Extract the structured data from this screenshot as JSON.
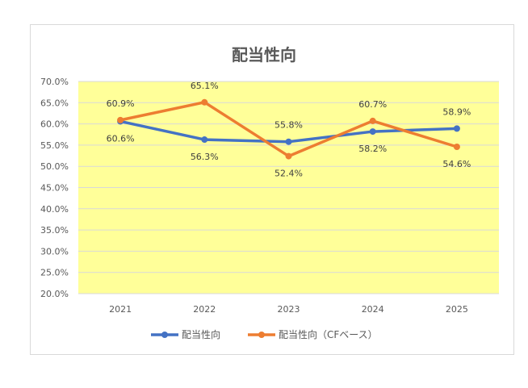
{
  "chart_data": {
    "type": "line",
    "title": "配当性向",
    "categories": [
      "2021",
      "2022",
      "2023",
      "2024",
      "2025"
    ],
    "series": [
      {
        "name": "配当性向",
        "values": [
          60.6,
          56.3,
          55.8,
          58.2,
          58.9
        ],
        "labels": [
          "60.6%",
          "56.3%",
          "55.8%",
          "58.2%",
          "58.9%"
        ],
        "color": "#4472c4"
      },
      {
        "name": "配当性向（CFベース）",
        "values": [
          60.9,
          65.1,
          52.4,
          60.7,
          54.6
        ],
        "labels": [
          "60.9%",
          "65.1%",
          "52.4%",
          "60.7%",
          "54.6%"
        ],
        "color": "#ed7d31"
      }
    ],
    "ylim": [
      20.0,
      70.0
    ],
    "yticks": [
      "20.0%",
      "25.0%",
      "30.0%",
      "35.0%",
      "40.0%",
      "45.0%",
      "50.0%",
      "55.0%",
      "60.0%",
      "65.0%",
      "70.0%"
    ],
    "ytick_values": [
      20,
      25,
      30,
      35,
      40,
      45,
      50,
      55,
      60,
      65,
      70
    ],
    "plot_background": "#ffff99",
    "grid": true,
    "legend": "bottom"
  }
}
